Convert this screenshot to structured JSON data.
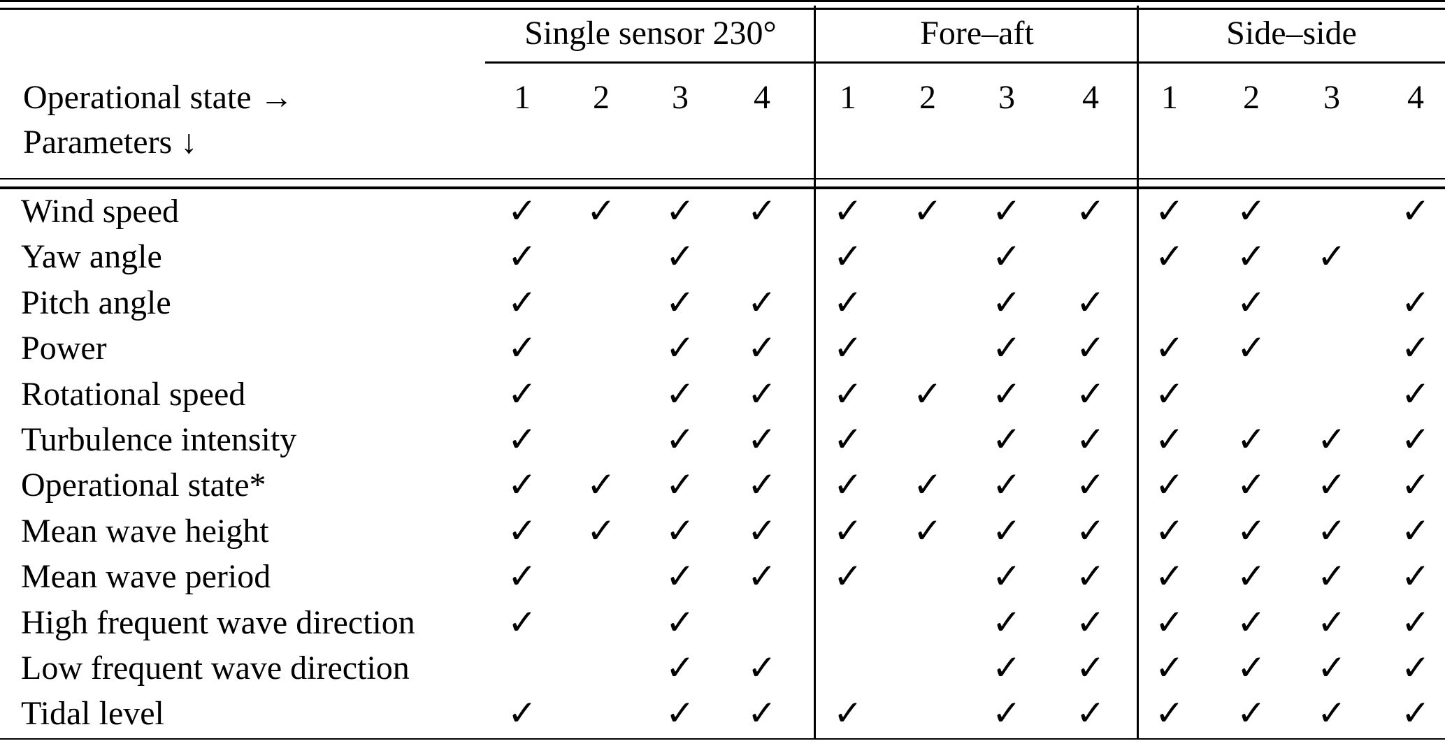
{
  "table": {
    "corner_header": {
      "line1": "Operational state →",
      "line2": "Parameters ↓"
    },
    "groups": [
      {
        "label": "Single sensor 230°",
        "states": [
          "1",
          "2",
          "3",
          "4"
        ]
      },
      {
        "label": "Fore–aft",
        "states": [
          "1",
          "2",
          "3",
          "4"
        ]
      },
      {
        "label": "Side–side",
        "states": [
          "1",
          "2",
          "3",
          "4"
        ]
      }
    ],
    "check_symbol": "✓",
    "rows": [
      {
        "label": "Wind speed",
        "checks": [
          [
            1,
            1,
            1,
            1
          ],
          [
            1,
            1,
            1,
            1
          ],
          [
            1,
            1,
            0,
            1
          ]
        ]
      },
      {
        "label": "Yaw angle",
        "checks": [
          [
            1,
            0,
            1,
            0
          ],
          [
            1,
            0,
            1,
            0
          ],
          [
            1,
            1,
            1,
            0
          ]
        ]
      },
      {
        "label": "Pitch angle",
        "checks": [
          [
            1,
            0,
            1,
            1
          ],
          [
            1,
            0,
            1,
            1
          ],
          [
            0,
            1,
            0,
            1
          ]
        ]
      },
      {
        "label": "Power",
        "checks": [
          [
            1,
            0,
            1,
            1
          ],
          [
            1,
            0,
            1,
            1
          ],
          [
            1,
            1,
            0,
            1
          ]
        ]
      },
      {
        "label": "Rotational speed",
        "checks": [
          [
            1,
            0,
            1,
            1
          ],
          [
            1,
            1,
            1,
            1
          ],
          [
            1,
            0,
            0,
            1
          ]
        ]
      },
      {
        "label": "Turbulence intensity",
        "checks": [
          [
            1,
            0,
            1,
            1
          ],
          [
            1,
            0,
            1,
            1
          ],
          [
            1,
            1,
            1,
            1
          ]
        ]
      },
      {
        "label": "Operational state*",
        "checks": [
          [
            1,
            1,
            1,
            1
          ],
          [
            1,
            1,
            1,
            1
          ],
          [
            1,
            1,
            1,
            1
          ]
        ]
      },
      {
        "label": "Mean wave height",
        "checks": [
          [
            1,
            1,
            1,
            1
          ],
          [
            1,
            1,
            1,
            1
          ],
          [
            1,
            1,
            1,
            1
          ]
        ]
      },
      {
        "label": "Mean wave period",
        "checks": [
          [
            1,
            0,
            1,
            1
          ],
          [
            1,
            0,
            1,
            1
          ],
          [
            1,
            1,
            1,
            1
          ]
        ]
      },
      {
        "label": "High frequent wave direction",
        "checks": [
          [
            1,
            0,
            1,
            0
          ],
          [
            0,
            0,
            1,
            1
          ],
          [
            1,
            1,
            1,
            1
          ]
        ]
      },
      {
        "label": "Low frequent wave direction",
        "checks": [
          [
            0,
            0,
            1,
            1
          ],
          [
            0,
            0,
            1,
            1
          ],
          [
            1,
            1,
            1,
            1
          ]
        ]
      },
      {
        "label": "Tidal level",
        "checks": [
          [
            1,
            0,
            1,
            1
          ],
          [
            1,
            0,
            1,
            1
          ],
          [
            1,
            1,
            1,
            1
          ]
        ]
      }
    ],
    "colors": {
      "text": "#000000",
      "background": "#ffffff",
      "rule": "#000000"
    }
  }
}
